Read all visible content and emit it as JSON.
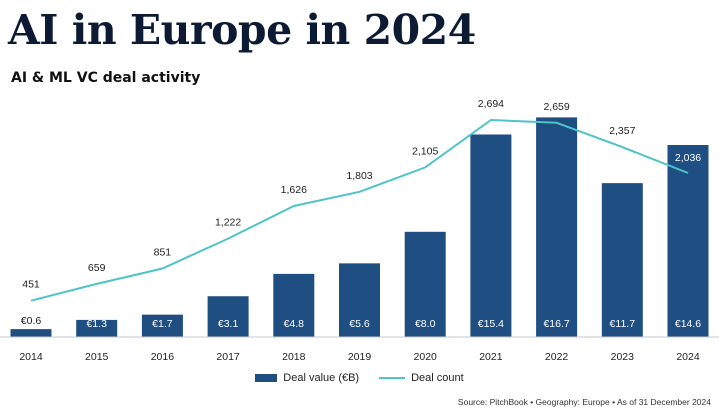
{
  "title": "AI in Europe in 2024",
  "subtitle": "AI & ML VC deal activity",
  "source": "Source: PitchBook  •  Geography: Europe  •  As of 31 December 2024",
  "colors": {
    "bar": "#1f4e82",
    "line": "#4dc4c8",
    "title": "#0c1b33"
  },
  "chart_data": {
    "type": "bar+line",
    "categories": [
      "2014",
      "2015",
      "2016",
      "2017",
      "2018",
      "2019",
      "2020",
      "2021",
      "2022",
      "2023",
      "2024"
    ],
    "series": [
      {
        "name": "Deal value (€B)",
        "type": "bar",
        "values": [
          0.6,
          1.3,
          1.7,
          3.1,
          4.8,
          5.6,
          8.0,
          15.4,
          16.7,
          11.7,
          14.6
        ],
        "labels": [
          "€0.6",
          "€1.3",
          "€1.7",
          "€3.1",
          "€4.8",
          "€5.6",
          "€8.0",
          "€15.4",
          "€16.7",
          "€11.7",
          "€14.6"
        ]
      },
      {
        "name": "Deal count",
        "type": "line",
        "values": [
          451,
          659,
          851,
          1222,
          1626,
          1803,
          2105,
          2694,
          2659,
          2357,
          2036
        ],
        "labels": [
          "451",
          "659",
          "851",
          "1,222",
          "1,626",
          "1,803",
          "2,105",
          "2,694",
          "2,659",
          "2,357",
          "2,036"
        ]
      }
    ],
    "legend_position": "bottom-center",
    "grid": false
  }
}
